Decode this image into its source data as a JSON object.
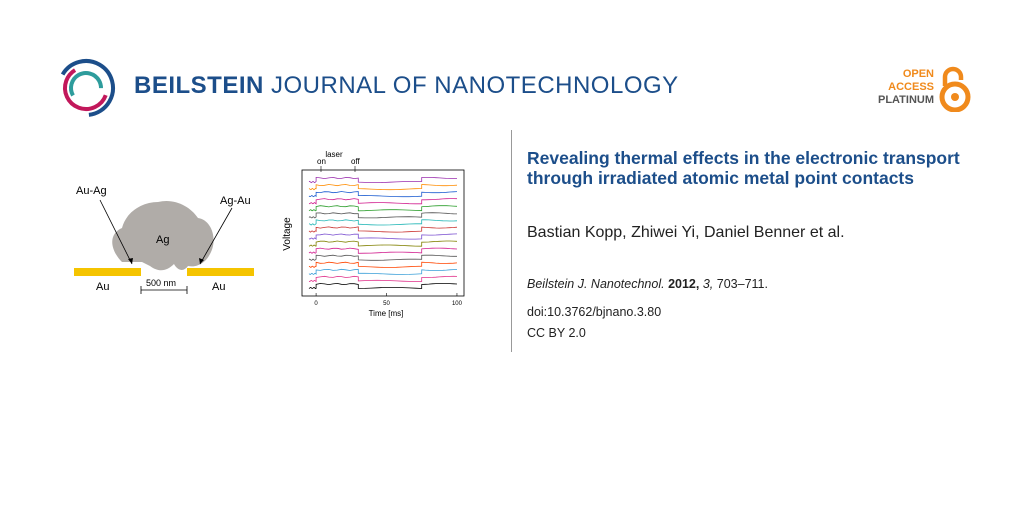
{
  "header": {
    "journal_bold": "BEILSTEIN",
    "journal_rest": " JOURNAL OF NANOTECHNOLOGY",
    "open_access": [
      "OPEN",
      "ACCESS",
      "PLATINUM"
    ]
  },
  "colors": {
    "brand_blue": "#1c4e8a",
    "open_access_orange": "#f08a1c",
    "gold": "#f5c400",
    "silver": "#b0aca8"
  },
  "schematic": {
    "label_au_ag": "Au-Ag",
    "label_ag_au": "Ag-Au",
    "label_ag": "Ag",
    "label_au_left": "Au",
    "label_au_right": "Au",
    "scale_bar": "500 nm"
  },
  "chart_data": {
    "type": "line",
    "xlabel": "Time [ms]",
    "ylabel": "Voltage",
    "xlim": [
      -10,
      105
    ],
    "x_ticks": [
      0,
      50,
      100
    ],
    "annotations": [
      "laser",
      "on",
      "off"
    ],
    "laser_on_ms": 0,
    "laser_off_ms": 30,
    "trace_colors": [
      "#9b2fae",
      "#ff8c00",
      "#1f5fd1",
      "#d11f8f",
      "#2a9d2a",
      "#555555",
      "#1fb5b5",
      "#c9302c",
      "#7a4fd0",
      "#808000",
      "#d11f8f",
      "#555555",
      "#ff4500",
      "#3a9fd8",
      "#e0308a",
      "#000000"
    ],
    "segment_boundaries_ms": [
      -5,
      0,
      30,
      75,
      100
    ],
    "step_pattern": [
      0,
      1,
      0,
      1
    ]
  },
  "article": {
    "title": "Revealing thermal effects in the electronic transport through irradiated atomic metal point contacts",
    "authors": "Bastian Kopp, Zhiwei Yi, Daniel Benner et al.",
    "journal_abbrev": "Beilstein J. Nanotechnol.",
    "year": "2012,",
    "volume": "3,",
    "pages": "703–711.",
    "doi": "doi:10.3762/bjnano.3.80",
    "license": "CC BY 2.0"
  }
}
